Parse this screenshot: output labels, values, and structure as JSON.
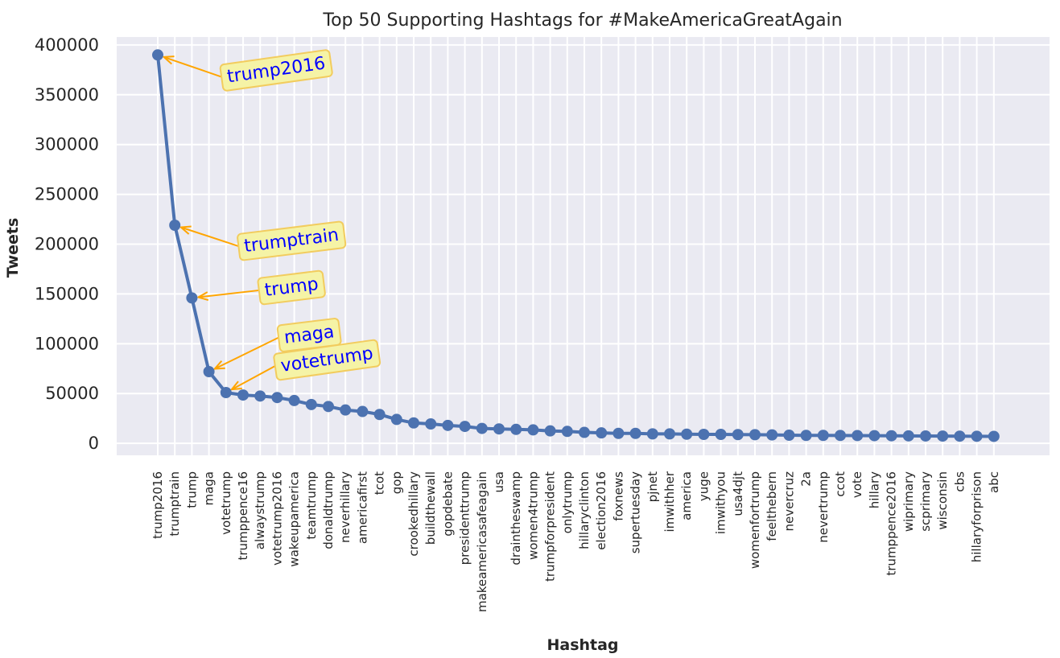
{
  "chart_data": {
    "type": "line",
    "title": "Top 50 Supporting Hashtags for #MakeAmericaGreatAgain",
    "xlabel": "Hashtag",
    "ylabel": "Tweets",
    "ylim": [
      -12000,
      408000
    ],
    "yticks": [
      0,
      50000,
      100000,
      150000,
      200000,
      250000,
      300000,
      350000,
      400000
    ],
    "grid": true,
    "categories": [
      "trump2016",
      "trumptrain",
      "trump",
      "maga",
      "votetrump",
      "trumppence16",
      "alwaystrump",
      "votetrump2016",
      "wakeupamerica",
      "teamtrump",
      "donaldtrump",
      "neverhillary",
      "americafirst",
      "tcot",
      "gop",
      "crookedhillary",
      "buildthewall",
      "gopdebate",
      "presidenttrump",
      "makeamericasafeagain",
      "usa",
      "draintheswamp",
      "women4trump",
      "trumpforpresident",
      "onlytrump",
      "hillaryclinton",
      "election2016",
      "foxnews",
      "supertuesday",
      "pjnet",
      "imwithher",
      "america",
      "yuge",
      "imwithyou",
      "usa4djt",
      "womenfortrump",
      "feelthebern",
      "nevercruz",
      "2a",
      "nevertrump",
      "ccot",
      "vote",
      "hillary",
      "trumppence2016",
      "wiprimary",
      "scprimary",
      "wisconsin",
      "cbs",
      "hillaryforprison",
      "abc"
    ],
    "series": [
      {
        "values": [
          390000,
          219000,
          146000,
          72000,
          51000,
          48500,
          47500,
          46000,
          43000,
          39000,
          37000,
          33500,
          32000,
          29000,
          24000,
          20500,
          19500,
          18000,
          17000,
          15000,
          14500,
          14000,
          13500,
          12500,
          12000,
          11000,
          10500,
          10000,
          10000,
          9500,
          9500,
          9200,
          9000,
          9000,
          8800,
          8700,
          8500,
          8200,
          8000,
          8000,
          7900,
          7800,
          7700,
          7600,
          7500,
          7400,
          7300,
          7200,
          7100,
          7000
        ],
        "color": "#4c72b0"
      }
    ],
    "annotations": [
      {
        "text": "trump2016",
        "index": 0
      },
      {
        "text": "trumptrain",
        "index": 1
      },
      {
        "text": "trump",
        "index": 2
      },
      {
        "text": "maga",
        "index": 3
      },
      {
        "text": "votetrump",
        "index": 4
      }
    ],
    "colors": {
      "plot_background": "#eaeaf2",
      "grid": "#ffffff",
      "line": "#4c72b0",
      "arrow": "#ffa500",
      "annotation_text": "#0000ff",
      "annotation_box": "#f5f3a6",
      "annotation_border": "#f2cc5e"
    }
  }
}
